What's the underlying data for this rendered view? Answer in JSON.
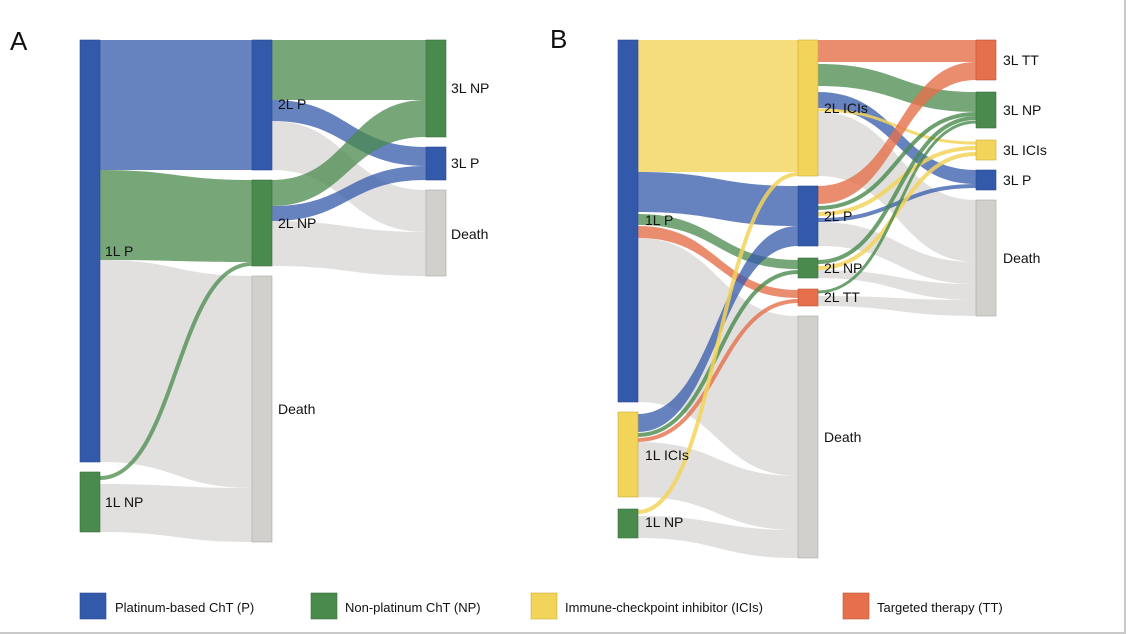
{
  "colors": {
    "platinum": "#3359ab",
    "nonplatinum": "#4a8a4c",
    "ici": "#f3d45a",
    "tt": "#e5704b",
    "death": "#d1d0cd",
    "link_grey": "#dcdbd8"
  },
  "panel_a": {
    "letter": "A",
    "nodes": {
      "l1p": "1L P",
      "l1np": "1L NP",
      "l2p": "2L P",
      "l2np": "2L NP",
      "l2death": "Death",
      "l3np": "3L NP",
      "l3p": "3L P",
      "l3death": "Death"
    }
  },
  "panel_b": {
    "letter": "B",
    "nodes": {
      "l1p": "1L P",
      "l1ici": "1L ICIs",
      "l1np": "1L NP",
      "l2ici": "2L ICIs",
      "l2p": "2L P",
      "l2np": "2L NP",
      "l2tt": "2L TT",
      "l2death": "Death",
      "l3tt": "3L TT",
      "l3np": "3L NP",
      "l3ici": "3L ICIs",
      "l3p": "3L P",
      "l3death": "Death"
    }
  },
  "legend": [
    {
      "label": "Platinum-based ChT  (P)",
      "color": "#3359ab"
    },
    {
      "label": "Non-platinum ChT (NP)",
      "color": "#4a8a4c"
    },
    {
      "label": "Immune-checkpoint inhibitor (ICIs)",
      "color": "#f3d45a"
    },
    {
      "label": "Targeted therapy (TT)",
      "color": "#e5704b"
    }
  ]
}
